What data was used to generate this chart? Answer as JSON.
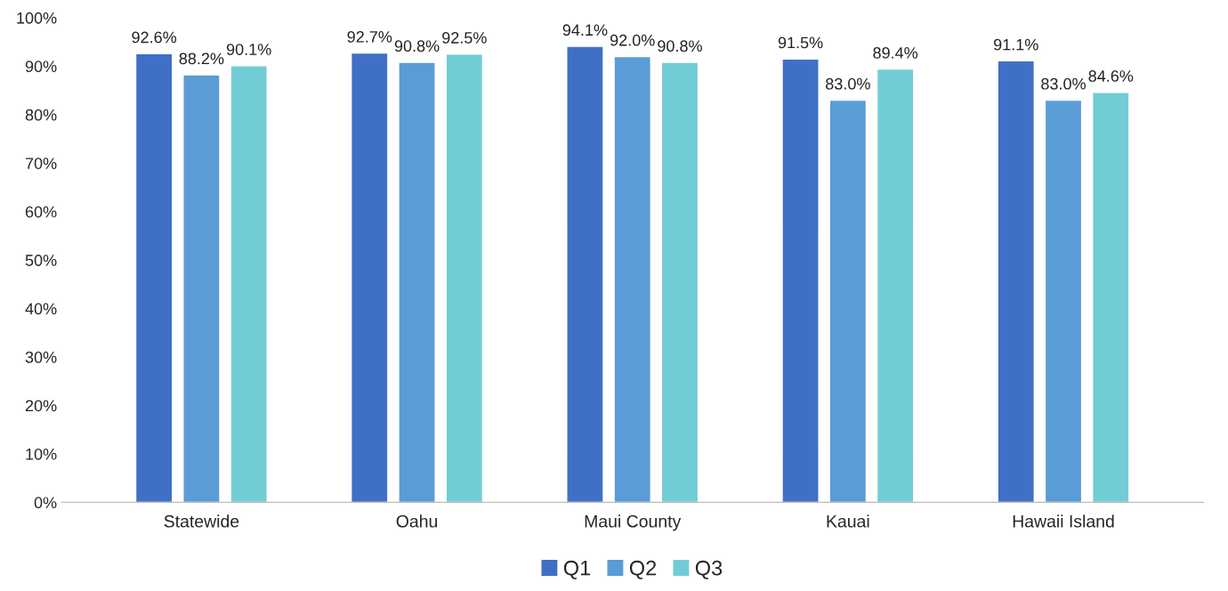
{
  "chart_data": {
    "type": "bar",
    "categories": [
      "Statewide",
      "Oahu",
      "Maui County",
      "Kauai",
      "Hawaii Island"
    ],
    "series": [
      {
        "name": "Q1",
        "color": "#4070c6",
        "values": [
          92.6,
          92.7,
          94.1,
          91.5,
          91.1
        ],
        "value_labels": [
          "92.6%",
          "92.7%",
          "94.1%",
          "91.5%",
          "91.1%"
        ]
      },
      {
        "name": "Q2",
        "color": "#5a9cd6",
        "values": [
          88.2,
          90.8,
          92.0,
          83.0,
          83.0
        ],
        "value_labels": [
          "88.2%",
          "90.8%",
          "92.0%",
          "83.0%",
          "83.0%"
        ]
      },
      {
        "name": "Q3",
        "color": "#72ccd6",
        "values": [
          90.1,
          92.5,
          90.8,
          89.4,
          84.6
        ],
        "value_labels": [
          "90.1%",
          "92.5%",
          "90.8%",
          "89.4%",
          "84.6%"
        ]
      }
    ],
    "ylim": [
      0,
      100
    ],
    "yticks": [
      {
        "value": 0,
        "label": "0%"
      },
      {
        "value": 10,
        "label": "10%"
      },
      {
        "value": 20,
        "label": "20%"
      },
      {
        "value": 30,
        "label": "30%"
      },
      {
        "value": 40,
        "label": "40%"
      },
      {
        "value": 50,
        "label": "50%"
      },
      {
        "value": 60,
        "label": "60%"
      },
      {
        "value": 70,
        "label": "70%"
      },
      {
        "value": 80,
        "label": "80%"
      },
      {
        "value": 90,
        "label": "90%"
      },
      {
        "value": 100,
        "label": "100%"
      }
    ],
    "grid": false,
    "legend": "bottom"
  }
}
